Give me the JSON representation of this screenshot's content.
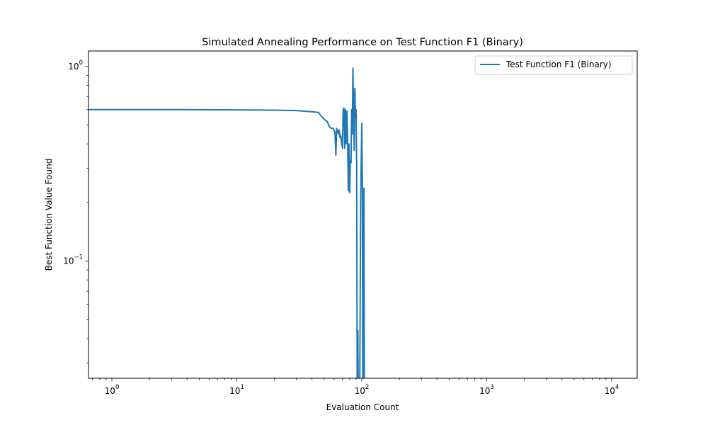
{
  "chart_data": {
    "type": "line",
    "title": "Simulated Annealing Performance on Test Function F1 (Binary)",
    "xlabel": "Evaluation Count",
    "ylabel": "Best Function Value Found",
    "xscale": "log",
    "yscale": "log",
    "xlim": [
      0.65,
      16000
    ],
    "ylim": [
      0.025,
      1.2
    ],
    "grid": false,
    "legend_position": "top-right",
    "x_ticks": [
      {
        "value": 1,
        "base": "10",
        "exp": "0"
      },
      {
        "value": 10,
        "base": "10",
        "exp": "1"
      },
      {
        "value": 100,
        "base": "10",
        "exp": "2"
      },
      {
        "value": 1000,
        "base": "10",
        "exp": "3"
      },
      {
        "value": 10000,
        "base": "10",
        "exp": "4"
      }
    ],
    "y_ticks": [
      {
        "value": 1,
        "base": "10",
        "exp": "0"
      },
      {
        "value": 0.1,
        "base": "10",
        "exp": "−1"
      }
    ],
    "series": [
      {
        "name": "Test Function F1 (Binary)",
        "color": "#1f77b4",
        "points": [
          [
            0.65,
            0.6
          ],
          [
            1,
            0.6
          ],
          [
            3,
            0.6
          ],
          [
            10,
            0.598
          ],
          [
            20,
            0.596
          ],
          [
            30,
            0.593
          ],
          [
            35,
            0.588
          ],
          [
            40,
            0.585
          ],
          [
            45,
            0.58
          ],
          [
            47,
            0.56
          ],
          [
            50,
            0.535
          ],
          [
            53,
            0.52
          ],
          [
            55,
            0.49
          ],
          [
            57,
            0.48
          ],
          [
            59,
            0.482
          ],
          [
            60,
            0.47
          ],
          [
            61,
            0.46
          ],
          [
            62,
            0.35
          ],
          [
            63,
            0.48
          ],
          [
            64,
            0.47
          ],
          [
            65,
            0.45
          ],
          [
            66,
            0.47
          ],
          [
            67,
            0.43
          ],
          [
            68,
            0.44
          ],
          [
            69,
            0.4
          ],
          [
            70,
            0.38
          ],
          [
            71,
            0.6
          ],
          [
            72,
            0.61
          ],
          [
            73,
            0.38
          ],
          [
            74,
            0.6
          ],
          [
            75,
            0.4
          ],
          [
            76,
            0.59
          ],
          [
            77,
            0.41
          ],
          [
            78,
            0.23
          ],
          [
            79,
            0.4
          ],
          [
            80,
            0.225
          ],
          [
            81,
            0.33
          ],
          [
            82,
            0.32
          ],
          [
            83,
            0.6
          ],
          [
            84,
            0.45
          ],
          [
            85,
            0.98
          ],
          [
            86,
            0.62
          ],
          [
            87,
            0.37
          ],
          [
            88,
            0.77
          ],
          [
            89,
            0.55
          ],
          [
            90,
            0.6
          ],
          [
            91,
            0.3
          ],
          [
            92,
            0.015
          ],
          [
            93,
            0.044
          ],
          [
            94,
            0.015
          ],
          [
            96,
            0.015
          ],
          [
            98,
            0.2
          ],
          [
            100,
            0.51
          ],
          [
            101,
            0.25
          ],
          [
            102,
            0.015
          ],
          [
            104,
            0.237
          ],
          [
            105,
            0.015
          ]
        ]
      }
    ]
  }
}
